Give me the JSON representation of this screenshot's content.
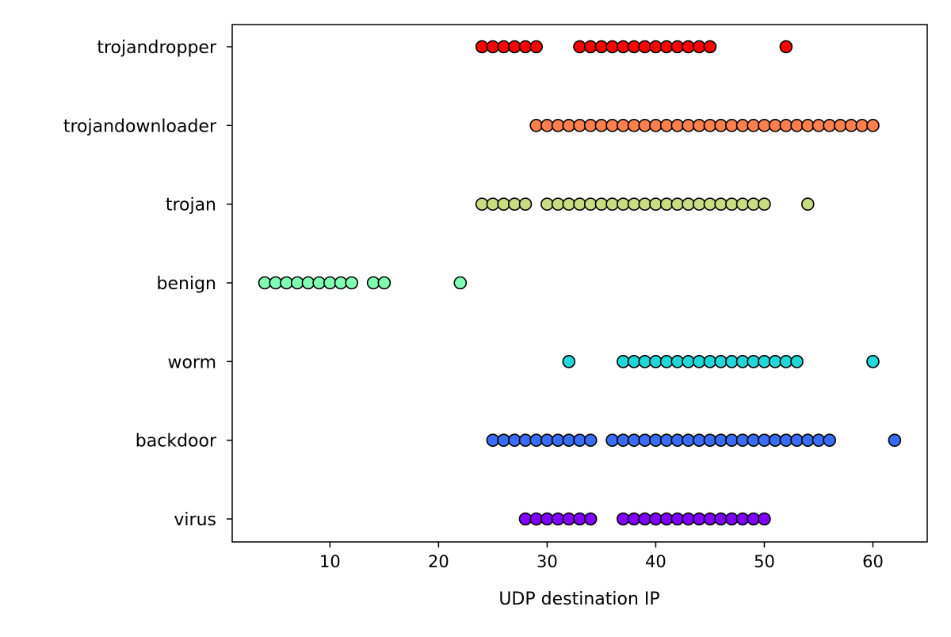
{
  "chart_data": {
    "type": "scatter",
    "title": "",
    "xlabel": "UDP destination IP",
    "ylabel": "",
    "xlim": [
      1,
      65
    ],
    "x_ticks": [
      10,
      20,
      30,
      40,
      50,
      60
    ],
    "grid": false,
    "categories": [
      "virus",
      "backdoor",
      "worm",
      "benign",
      "trojan",
      "trojandownloader",
      "trojandropper"
    ],
    "series": [
      {
        "category": "virus",
        "color": "#7f00ff",
        "x": [
          28,
          29,
          30,
          31,
          32,
          33,
          34,
          37,
          38,
          39,
          40,
          41,
          42,
          43,
          44,
          45,
          46,
          47,
          48,
          49,
          50
        ]
      },
      {
        "category": "backdoor",
        "color": "#3a6cf4",
        "x": [
          25,
          26,
          27,
          28,
          29,
          30,
          31,
          32,
          33,
          34,
          36,
          37,
          38,
          39,
          40,
          41,
          42,
          43,
          44,
          45,
          46,
          47,
          48,
          49,
          50,
          51,
          52,
          53,
          54,
          55,
          56,
          62
        ]
      },
      {
        "category": "worm",
        "color": "#20d8d8",
        "x": [
          32,
          37,
          38,
          39,
          40,
          41,
          42,
          43,
          44,
          45,
          46,
          47,
          48,
          49,
          50,
          51,
          52,
          53,
          60
        ]
      },
      {
        "category": "benign",
        "color": "#80ffb4",
        "x": [
          4,
          5,
          6,
          7,
          8,
          9,
          10,
          11,
          12,
          14,
          15,
          22
        ]
      },
      {
        "category": "trojan",
        "color": "#c8dc82",
        "x": [
          24,
          25,
          26,
          27,
          28,
          30,
          31,
          32,
          33,
          34,
          35,
          36,
          37,
          38,
          39,
          40,
          41,
          42,
          43,
          44,
          45,
          46,
          47,
          48,
          49,
          50,
          54
        ]
      },
      {
        "category": "trojandownloader",
        "color": "#ff7f4e",
        "x": [
          29,
          30,
          31,
          32,
          33,
          34,
          35,
          36,
          37,
          38,
          39,
          40,
          41,
          42,
          43,
          44,
          45,
          46,
          47,
          48,
          49,
          50,
          51,
          52,
          53,
          54,
          55,
          56,
          57,
          58,
          59,
          60
        ]
      },
      {
        "category": "trojandropper",
        "color": "#ff0000",
        "x": [
          24,
          25,
          26,
          27,
          28,
          29,
          33,
          34,
          35,
          36,
          37,
          38,
          39,
          40,
          41,
          42,
          43,
          44,
          45,
          52
        ]
      }
    ]
  }
}
